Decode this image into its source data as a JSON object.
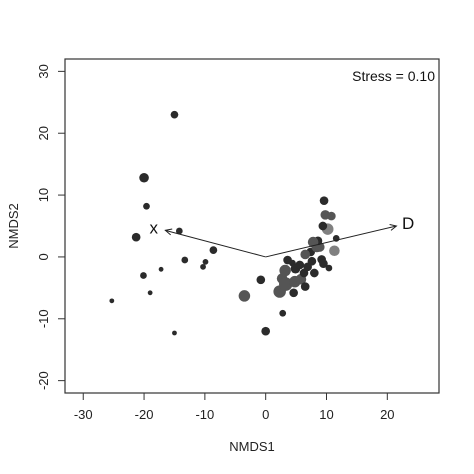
{
  "chart_data": {
    "type": "scatter",
    "xlabel": "NMDS1",
    "ylabel": "NMDS2",
    "xlim": [
      -33,
      28.5
    ],
    "ylim": [
      -22,
      32
    ],
    "xticks": [
      -30,
      -20,
      -10,
      0,
      10,
      20
    ],
    "yticks": [
      -20,
      -10,
      0,
      10,
      20,
      30
    ],
    "annotation": "Stress = 0.10",
    "colors": {
      "dark": "#2b2b2b",
      "mid": "#555555",
      "light": "#808080"
    },
    "points": [
      {
        "x": -15.0,
        "y": 23.0,
        "r": 1.6,
        "tone": "dark"
      },
      {
        "x": -20.0,
        "y": 12.8,
        "r": 2.0,
        "tone": "dark"
      },
      {
        "x": -19.6,
        "y": 8.2,
        "r": 1.4,
        "tone": "dark"
      },
      {
        "x": -14.2,
        "y": 4.2,
        "r": 1.4,
        "tone": "dark"
      },
      {
        "x": -21.3,
        "y": 3.2,
        "r": 1.8,
        "tone": "dark"
      },
      {
        "x": -17.2,
        "y": -2.0,
        "r": 1.0,
        "tone": "dark"
      },
      {
        "x": -13.3,
        "y": -0.5,
        "r": 1.4,
        "tone": "dark"
      },
      {
        "x": -10.3,
        "y": -1.6,
        "r": 1.2,
        "tone": "dark"
      },
      {
        "x": -9.9,
        "y": -0.8,
        "r": 1.2,
        "tone": "dark"
      },
      {
        "x": -8.6,
        "y": 1.1,
        "r": 1.6,
        "tone": "dark"
      },
      {
        "x": -20.1,
        "y": -3.0,
        "r": 1.4,
        "tone": "dark"
      },
      {
        "x": -19.0,
        "y": -5.8,
        "r": 1.0,
        "tone": "dark"
      },
      {
        "x": -25.3,
        "y": -7.1,
        "r": 1.0,
        "tone": "dark"
      },
      {
        "x": -15.0,
        "y": -12.3,
        "r": 1.0,
        "tone": "dark"
      },
      {
        "x": 0.0,
        "y": -12.0,
        "r": 1.8,
        "tone": "dark"
      },
      {
        "x": -3.5,
        "y": -6.3,
        "r": 2.4,
        "tone": "mid"
      },
      {
        "x": -0.8,
        "y": -3.7,
        "r": 1.8,
        "tone": "dark"
      },
      {
        "x": 2.8,
        "y": -9.1,
        "r": 1.4,
        "tone": "dark"
      },
      {
        "x": 2.3,
        "y": -5.6,
        "r": 2.6,
        "tone": "mid"
      },
      {
        "x": 2.7,
        "y": -3.5,
        "r": 2.2,
        "tone": "mid"
      },
      {
        "x": 3.3,
        "y": -4.4,
        "r": 2.8,
        "tone": "mid"
      },
      {
        "x": 4.6,
        "y": -5.8,
        "r": 1.8,
        "tone": "dark"
      },
      {
        "x": 4.8,
        "y": -4.0,
        "r": 2.4,
        "tone": "mid"
      },
      {
        "x": 5.8,
        "y": -3.6,
        "r": 2.2,
        "tone": "mid"
      },
      {
        "x": 6.5,
        "y": -4.8,
        "r": 1.8,
        "tone": "dark"
      },
      {
        "x": 3.6,
        "y": -0.5,
        "r": 1.8,
        "tone": "dark"
      },
      {
        "x": 4.4,
        "y": -1.0,
        "r": 1.4,
        "tone": "dark"
      },
      {
        "x": 4.9,
        "y": -1.9,
        "r": 2.0,
        "tone": "dark"
      },
      {
        "x": 3.2,
        "y": -2.2,
        "r": 2.4,
        "tone": "mid"
      },
      {
        "x": 5.6,
        "y": -1.3,
        "r": 1.8,
        "tone": "dark"
      },
      {
        "x": 6.3,
        "y": -2.6,
        "r": 1.8,
        "tone": "dark"
      },
      {
        "x": 6.9,
        "y": -1.6,
        "r": 1.8,
        "tone": "dark"
      },
      {
        "x": 7.6,
        "y": -0.7,
        "r": 1.8,
        "tone": "dark"
      },
      {
        "x": 8.0,
        "y": -2.6,
        "r": 1.8,
        "tone": "dark"
      },
      {
        "x": 7.4,
        "y": 0.8,
        "r": 1.8,
        "tone": "dark"
      },
      {
        "x": 6.5,
        "y": 0.4,
        "r": 2.0,
        "tone": "mid"
      },
      {
        "x": 8.4,
        "y": 1.6,
        "r": 2.2,
        "tone": "mid"
      },
      {
        "x": 8.9,
        "y": 1.6,
        "r": 2.0,
        "tone": "mid"
      },
      {
        "x": 8.6,
        "y": 2.6,
        "r": 1.8,
        "tone": "dark"
      },
      {
        "x": 7.8,
        "y": 2.4,
        "r": 2.2,
        "tone": "mid"
      },
      {
        "x": 9.2,
        "y": -0.4,
        "r": 1.8,
        "tone": "dark"
      },
      {
        "x": 9.5,
        "y": -1.1,
        "r": 1.8,
        "tone": "dark"
      },
      {
        "x": 10.4,
        "y": -1.8,
        "r": 1.4,
        "tone": "dark"
      },
      {
        "x": 10.2,
        "y": 4.5,
        "r": 2.4,
        "tone": "light"
      },
      {
        "x": 9.4,
        "y": 5.0,
        "r": 1.8,
        "tone": "dark"
      },
      {
        "x": 9.8,
        "y": 6.8,
        "r": 2.0,
        "tone": "mid"
      },
      {
        "x": 10.8,
        "y": 6.6,
        "r": 1.8,
        "tone": "mid"
      },
      {
        "x": 9.6,
        "y": 9.1,
        "r": 1.8,
        "tone": "dark"
      },
      {
        "x": 11.6,
        "y": 3.0,
        "r": 1.4,
        "tone": "dark"
      },
      {
        "x": 11.3,
        "y": 1.0,
        "r": 2.2,
        "tone": "light"
      }
    ],
    "vectors": [
      {
        "label": "x",
        "x1": 0,
        "y1": 0,
        "x2": -16.5,
        "y2": 4.3
      },
      {
        "label": "D",
        "x1": 0,
        "y1": 0,
        "x2": 21.5,
        "y2": 5.0
      }
    ]
  }
}
